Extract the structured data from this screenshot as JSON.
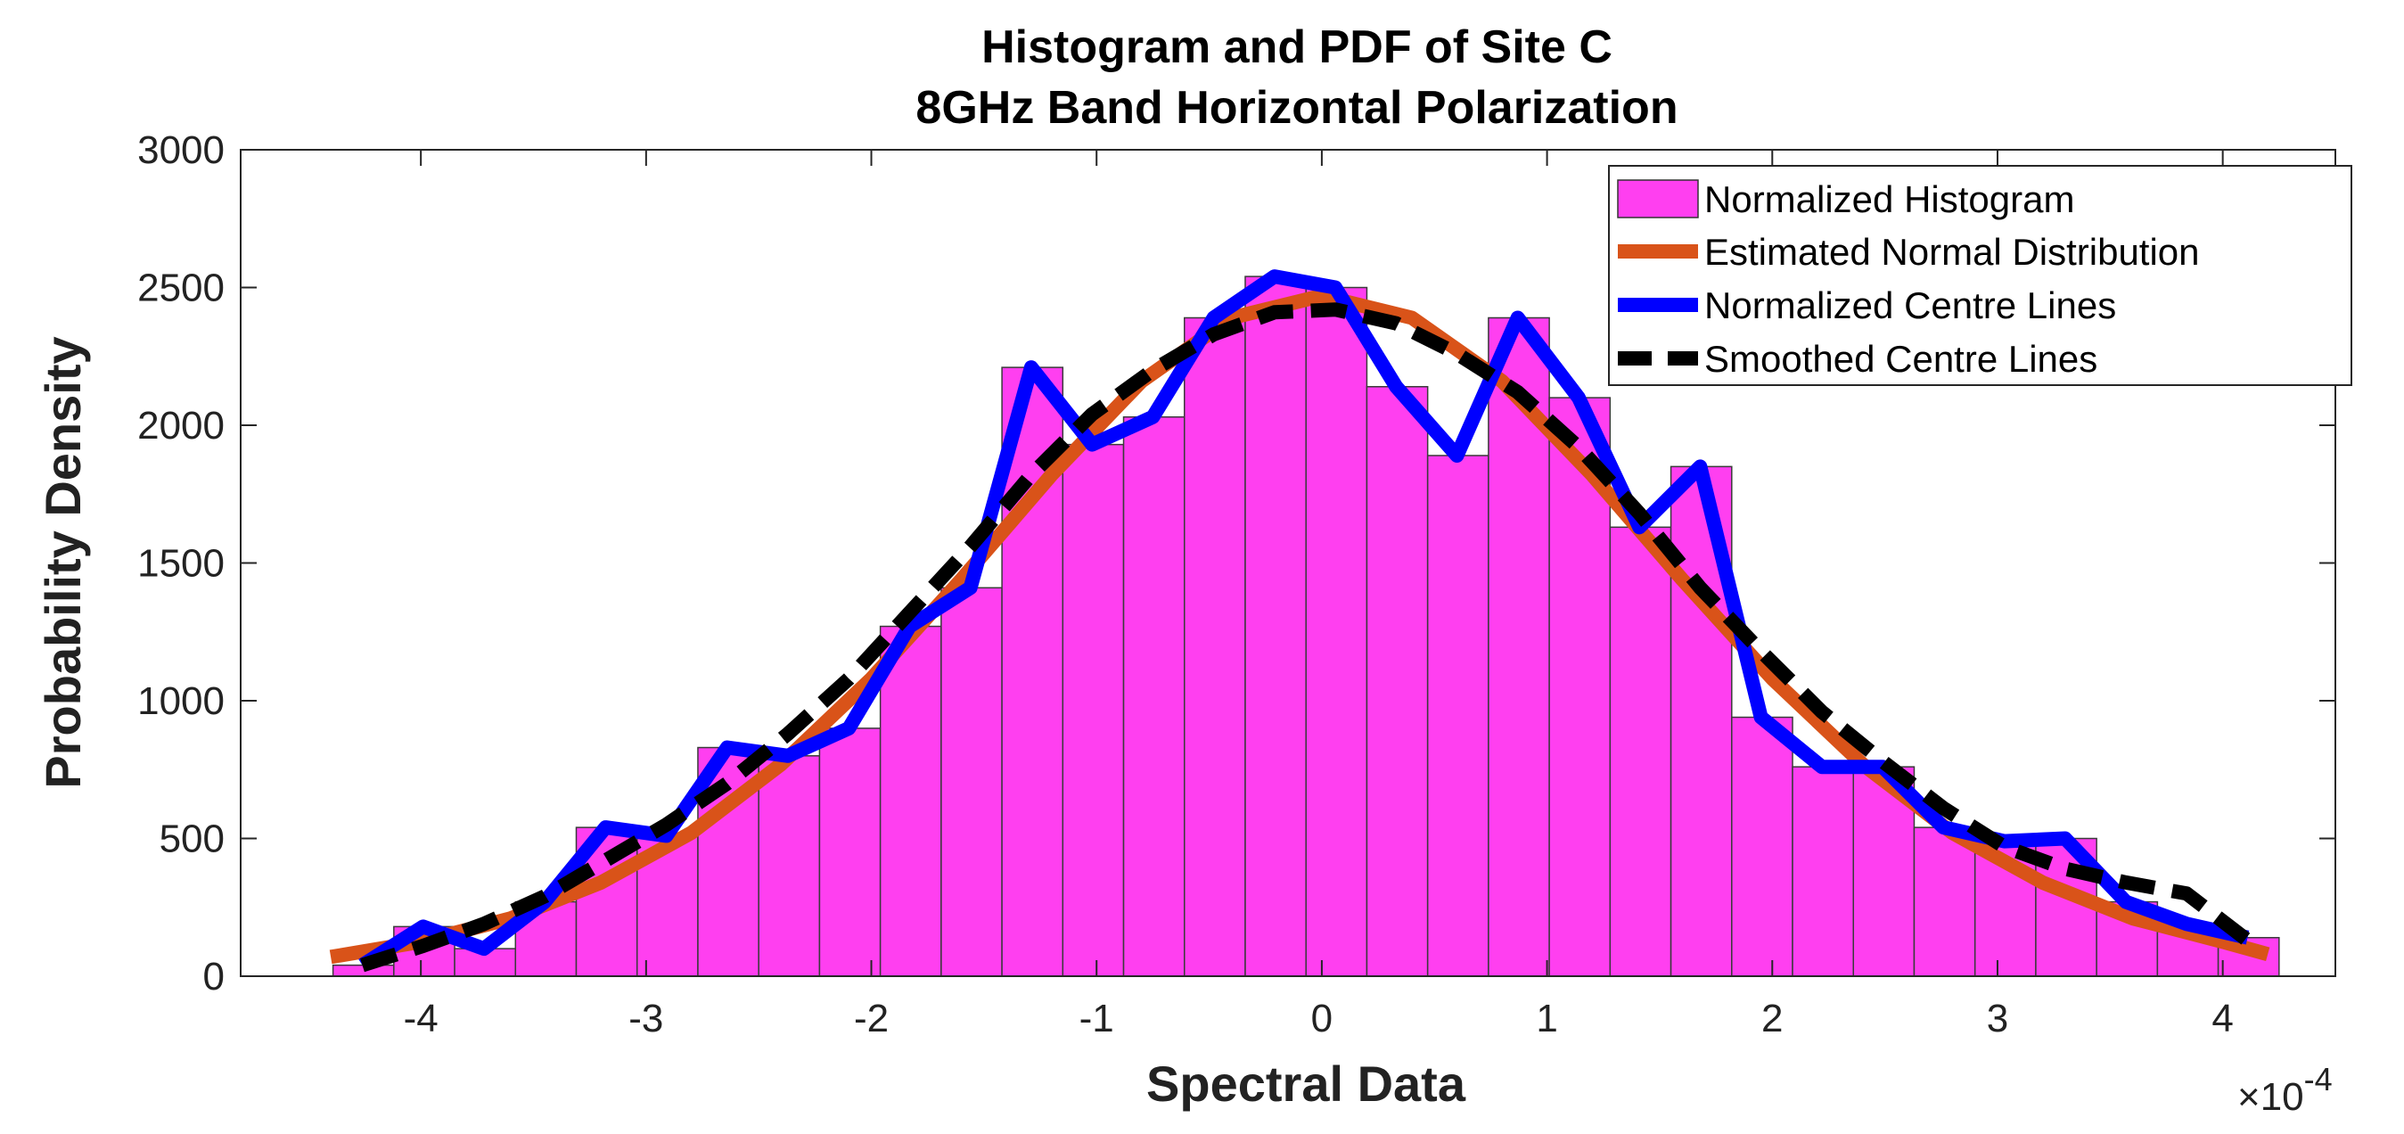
{
  "chart_data": {
    "type": "bar",
    "title": [
      "Histogram and PDF of Site C",
      "8GHz Band Horizontal Polarization"
    ],
    "xlabel": "Spectral Data",
    "ylabel": "Probability Density",
    "x_exponent_label": "×10",
    "x_exponent_power": "-4",
    "xlim": [
      -4.8,
      4.5
    ],
    "ylim": [
      0,
      3000
    ],
    "xticks": [
      -4,
      -3,
      -2,
      -1,
      0,
      1,
      2,
      3,
      4
    ],
    "xtick_labels": [
      "-4",
      "-3",
      "-2",
      "-1",
      "0",
      "1",
      "2",
      "3",
      "4"
    ],
    "yticks": [
      0,
      500,
      1000,
      1500,
      2000,
      2500,
      3000
    ],
    "ytick_labels": [
      "0",
      "500",
      "1000",
      "1500",
      "2000",
      "2500",
      "3000"
    ],
    "grid": false,
    "legend_position": "top-right",
    "histogram": {
      "name": "Normalized Histogram",
      "color": "#ff3ff0",
      "bin_edges": [
        -4.39,
        -4.12,
        -3.85,
        -3.58,
        -3.31,
        -3.04,
        -2.77,
        -2.5,
        -2.23,
        -1.96,
        -1.69,
        -1.42,
        -1.15,
        -0.88,
        -0.61,
        -0.34,
        -0.07,
        0.2,
        0.47,
        0.74,
        1.01,
        1.28,
        1.55,
        1.82,
        2.09,
        2.36,
        2.63,
        2.9,
        3.17,
        3.44,
        3.71,
        3.98,
        4.25
      ],
      "counts": [
        40,
        180,
        100,
        270,
        540,
        510,
        830,
        800,
        900,
        1270,
        1410,
        2210,
        1930,
        2030,
        2390,
        2540,
        2500,
        2140,
        1890,
        2390,
        2100,
        1630,
        1850,
        940,
        760,
        760,
        540,
        490,
        500,
        270,
        190,
        140
      ]
    },
    "series": [
      {
        "name": "Estimated Normal Distribution",
        "color": "#d95319",
        "x": [
          -4.4,
          -4.0,
          -3.6,
          -3.2,
          -2.8,
          -2.4,
          -2.0,
          -1.6,
          -1.2,
          -0.8,
          -0.4,
          0.0,
          0.4,
          0.8,
          1.2,
          1.6,
          2.0,
          2.4,
          2.8,
          3.2,
          3.6,
          4.0,
          4.2
        ],
        "y": [
          70,
          125,
          210,
          340,
          520,
          770,
          1080,
          1440,
          1820,
          2160,
          2390,
          2470,
          2390,
          2160,
          1820,
          1440,
          1080,
          770,
          520,
          340,
          210,
          125,
          80
        ]
      },
      {
        "name": "Normalized Centre Lines",
        "color": "#0000ff",
        "x": [
          -4.26,
          -3.99,
          -3.72,
          -3.45,
          -3.18,
          -2.91,
          -2.64,
          -2.37,
          -2.1,
          -1.83,
          -1.56,
          -1.29,
          -1.02,
          -0.75,
          -0.48,
          -0.21,
          0.06,
          0.33,
          0.6,
          0.87,
          1.14,
          1.41,
          1.68,
          1.95,
          2.22,
          2.49,
          2.76,
          3.03,
          3.3,
          3.57,
          3.84,
          4.11
        ],
        "y": [
          40,
          180,
          100,
          270,
          540,
          510,
          830,
          800,
          900,
          1270,
          1410,
          2210,
          1930,
          2030,
          2390,
          2540,
          2500,
          2140,
          1890,
          2390,
          2100,
          1630,
          1850,
          940,
          760,
          760,
          540,
          490,
          500,
          270,
          190,
          140
        ]
      },
      {
        "name": "Smoothed Centre Lines",
        "color": "#000000",
        "x": [
          -4.26,
          -3.99,
          -3.72,
          -3.45,
          -3.18,
          -2.91,
          -2.64,
          -2.37,
          -2.1,
          -1.83,
          -1.56,
          -1.29,
          -1.02,
          -0.75,
          -0.48,
          -0.21,
          0.06,
          0.33,
          0.6,
          0.87,
          1.14,
          1.41,
          1.68,
          1.95,
          2.22,
          2.49,
          2.76,
          3.03,
          3.3,
          3.57,
          3.84,
          4.11
        ],
        "y": [
          40,
          110,
          190,
          290,
          420,
          550,
          700,
          880,
          1080,
          1320,
          1560,
          1820,
          2040,
          2200,
          2330,
          2410,
          2420,
          2370,
          2260,
          2120,
          1920,
          1680,
          1410,
          1180,
          960,
          780,
          610,
          470,
          390,
          340,
          300,
          130
        ]
      }
    ]
  }
}
